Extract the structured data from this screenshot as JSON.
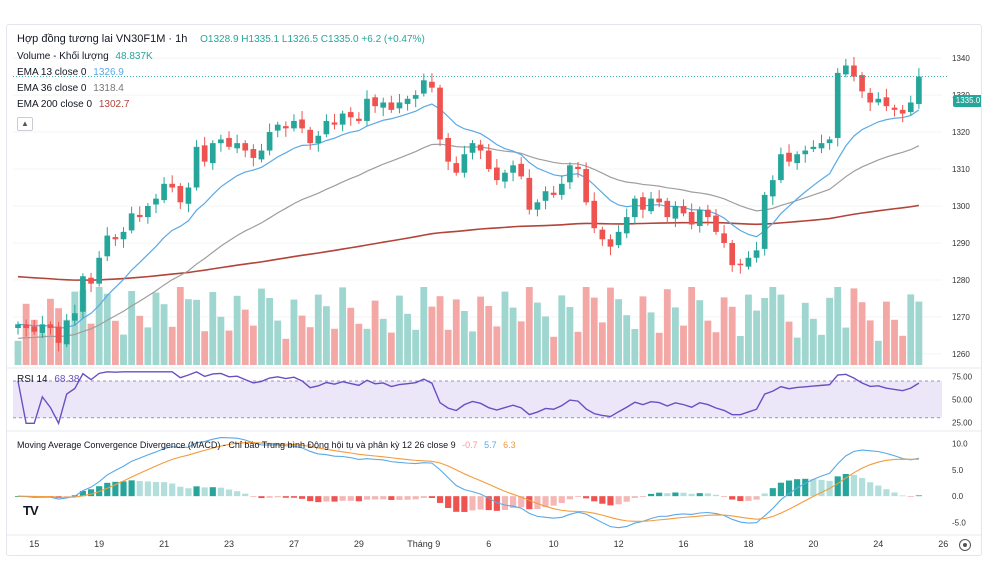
{
  "header": {
    "symbol_title": "Hợp đồng tương lai VN30F1M · 1h",
    "ohlc": "O1328.9 H1335.1 L1326.5 C1335.0 +6.2 (+0.47%)",
    "volume_label": "Volume - Khối lượng",
    "volume_value": "48.837K"
  },
  "indicators": {
    "ema13_label": "EMA 13 close 0",
    "ema13_value": "1326.9",
    "ema36_label": "EMA 36 close 0",
    "ema36_value": "1318.4",
    "ema200_label": "EMA 200 close 0",
    "ema200_value": "1302.7",
    "rsi_label": "RSI 14",
    "rsi_value": "68.38",
    "macd_label": "Moving Average Convergence Divergence (MACD) - Chỉ báo Trung bình Động hội tụ và phân kỳ 12 26 close 9",
    "macd_hist": "-0.7",
    "macd_line": "5.7",
    "macd_signal": "6.3"
  },
  "last_price_badge": "1335.0",
  "colors": {
    "up": "#26a69a",
    "down": "#ef5350",
    "ema13": "#5aa9e6",
    "ema36": "#9e9e9e",
    "ema200": "#b2443a",
    "rsi": "#6a4fc2",
    "macd": "#5aa9e6",
    "signal": "#f39c3d"
  },
  "chart_data": [
    {
      "type": "candlestick",
      "title": "Hợp đồng tương lai VN30F1M · 1h",
      "price_axis_ticks": [
        1340,
        1330,
        1320,
        1310,
        1300,
        1290,
        1280,
        1270,
        1260
      ],
      "ylim": [
        1257,
        1343
      ],
      "x_ticks": [
        "15",
        "19",
        "21",
        "23",
        "27",
        "29",
        "Tháng 9",
        "6",
        "10",
        "12",
        "16",
        "18",
        "20",
        "24",
        "26"
      ],
      "close": [
        1268,
        1267,
        1266,
        1268,
        1267,
        1263,
        1269,
        1271,
        1281,
        1279,
        1286,
        1292,
        1291,
        1293,
        1298,
        1297,
        1300,
        1302,
        1306,
        1305,
        1301,
        1305,
        1316,
        1312,
        1317,
        1318,
        1316,
        1317,
        1315,
        1313,
        1315,
        1320,
        1322,
        1321,
        1323,
        1321,
        1317,
        1319,
        1323,
        1322,
        1325,
        1324,
        1323,
        1329,
        1327,
        1328,
        1326,
        1328,
        1329,
        1330,
        1334,
        1332,
        1318,
        1312,
        1309,
        1314,
        1317,
        1315,
        1310,
        1307,
        1309,
        1311,
        1308,
        1299,
        1301,
        1304,
        1303,
        1306,
        1311,
        1310,
        1301,
        1294,
        1291,
        1289,
        1293,
        1297,
        1302,
        1299,
        1302,
        1301,
        1297,
        1300,
        1298,
        1295,
        1299,
        1297,
        1293,
        1290,
        1284,
        1284,
        1286,
        1288,
        1303,
        1307,
        1314,
        1312,
        1314,
        1315,
        1316,
        1317,
        1318,
        1336,
        1338,
        1335,
        1331,
        1328,
        1329,
        1327,
        1326,
        1325,
        1328,
        1335
      ],
      "ema13_last": 1326.9,
      "ema36_last": 1318.4,
      "ema200_last": 1302.7
    },
    {
      "type": "line",
      "title": "RSI 14",
      "ticks": [
        75.0,
        50.0,
        25.0
      ],
      "band": [
        30,
        70
      ],
      "last": 68.38
    },
    {
      "type": "bar",
      "title": "Moving Average Convergence Divergence (MACD) - Chỉ báo Trung bình Động hội tụ và phân kỳ 12 26 close 9",
      "ticks": [
        10.0,
        5.0,
        0.0,
        -5.0
      ],
      "macd_last": 5.7,
      "signal_last": 6.3,
      "hist_last": -0.7
    }
  ]
}
